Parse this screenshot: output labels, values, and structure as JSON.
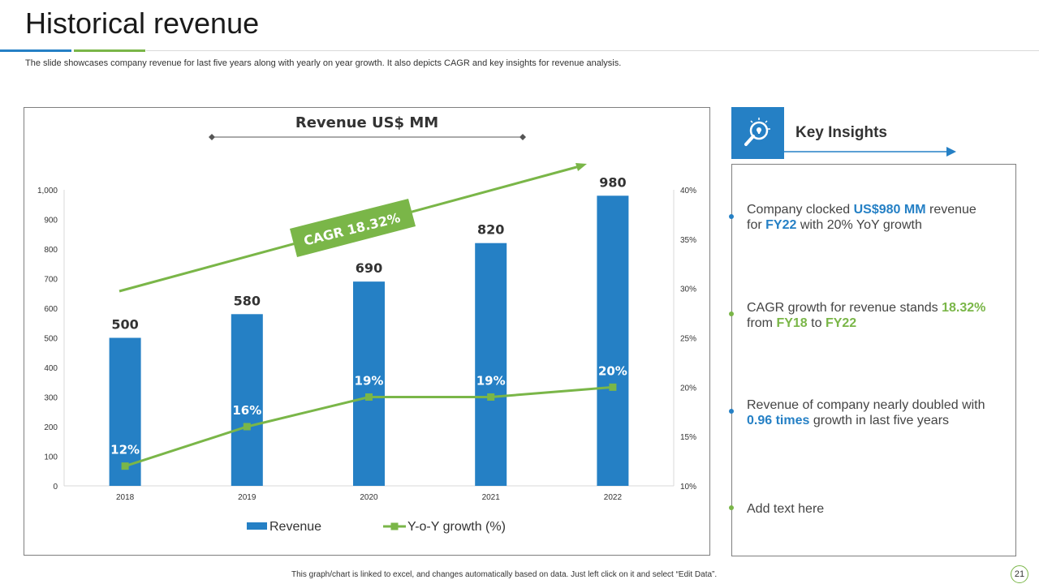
{
  "page": {
    "title": "Historical revenue",
    "subtitle": "The slide showcases company revenue for last five years along with yearly on year growth. It also depicts CAGR and key insights for revenue analysis.",
    "footer_note": "This graph/chart is linked to excel, and changes automatically based on data. Just left click on it and select “Edit Data”.",
    "page_number": "21"
  },
  "chart_data": {
    "type": "bar",
    "title": "Revenue US$ MM",
    "categories": [
      "2018",
      "2019",
      "2020",
      "2021",
      "2022"
    ],
    "series": [
      {
        "name": "Revenue",
        "type": "bar",
        "axis": "left",
        "values": [
          500,
          580,
          690,
          820,
          980
        ],
        "labels": [
          "500",
          "580",
          "690",
          "820",
          "980"
        ]
      },
      {
        "name": "Y-o-Y growth (%)",
        "type": "line",
        "axis": "right",
        "values": [
          12,
          16,
          19,
          19,
          20
        ],
        "labels": [
          "12%",
          "16%",
          "19%",
          "19%",
          "20%"
        ]
      }
    ],
    "y_left": {
      "min": 0,
      "max": 1000,
      "ticks": [
        0,
        100,
        200,
        300,
        400,
        500,
        600,
        700,
        800,
        900,
        1000
      ],
      "tick_labels": [
        "0",
        "100",
        "200",
        "300",
        "400",
        "500",
        "600",
        "700",
        "800",
        "900",
        "1,000"
      ]
    },
    "y_right": {
      "min": 10,
      "max": 40,
      "ticks": [
        10,
        15,
        20,
        25,
        30,
        35,
        40
      ],
      "tick_labels": [
        "10%",
        "15%",
        "20%",
        "25%",
        "30%",
        "35%",
        "40%"
      ]
    },
    "annotation": "CAGR 18.32%",
    "legend_position": "bottom",
    "colors": {
      "bar": "#2580c5",
      "line": "#7ab648"
    }
  },
  "insights": {
    "heading": "Key Insights",
    "icon": "lightbulb-magnifier-icon",
    "items": [
      {
        "parts": [
          {
            "t": "Company clocked ",
            "c": ""
          },
          {
            "t": "US$980 MM",
            "c": "b"
          },
          {
            "t": " revenue for ",
            "c": ""
          },
          {
            "t": "FY22",
            "c": "b"
          },
          {
            "t": " with 20% YoY growth",
            "c": ""
          }
        ],
        "dot": "#2580c5"
      },
      {
        "parts": [
          {
            "t": "CAGR growth for revenue stands ",
            "c": ""
          },
          {
            "t": "18.32%",
            "c": "g"
          },
          {
            "t": " from ",
            "c": ""
          },
          {
            "t": "FY18",
            "c": "g"
          },
          {
            "t": " to ",
            "c": ""
          },
          {
            "t": "FY22",
            "c": "g"
          }
        ],
        "dot": "#7ab648"
      },
      {
        "parts": [
          {
            "t": "Revenue of company nearly doubled with ",
            "c": ""
          },
          {
            "t": "0.96 times",
            "c": "b"
          },
          {
            "t": " growth in last five years",
            "c": ""
          }
        ],
        "dot": "#2580c5"
      },
      {
        "parts": [
          {
            "t": "Add text here",
            "c": ""
          }
        ],
        "dot": "#7ab648"
      }
    ]
  }
}
